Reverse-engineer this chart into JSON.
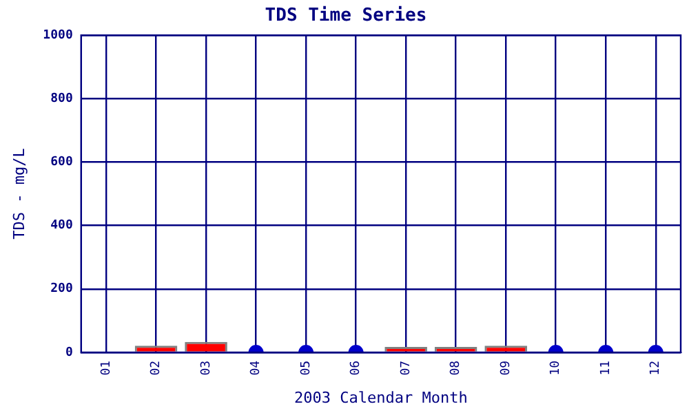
{
  "chart_data": {
    "type": "bar",
    "title": "TDS Time Series",
    "xlabel": "2003 Calendar Month",
    "ylabel": "TDS - mg/L",
    "categories": [
      "01",
      "02",
      "03",
      "04",
      "05",
      "06",
      "07",
      "08",
      "09",
      "10",
      "11",
      "12"
    ],
    "series": [
      {
        "color": "#ff0000",
        "values": [
          0,
          21,
          33,
          null,
          null,
          null,
          17,
          17,
          21,
          null,
          null,
          null
        ]
      },
      {
        "type": "scatter",
        "color": "#0000cc",
        "x": [
          "04",
          "05",
          "06",
          "10",
          "11",
          "12"
        ],
        "values": [
          0,
          0,
          0,
          0,
          0,
          0
        ]
      }
    ],
    "ylim": [
      0,
      1000
    ],
    "yticks": [
      0,
      200,
      400,
      600,
      800,
      1000
    ],
    "grid": true,
    "legend": false,
    "marker": "circle"
  }
}
